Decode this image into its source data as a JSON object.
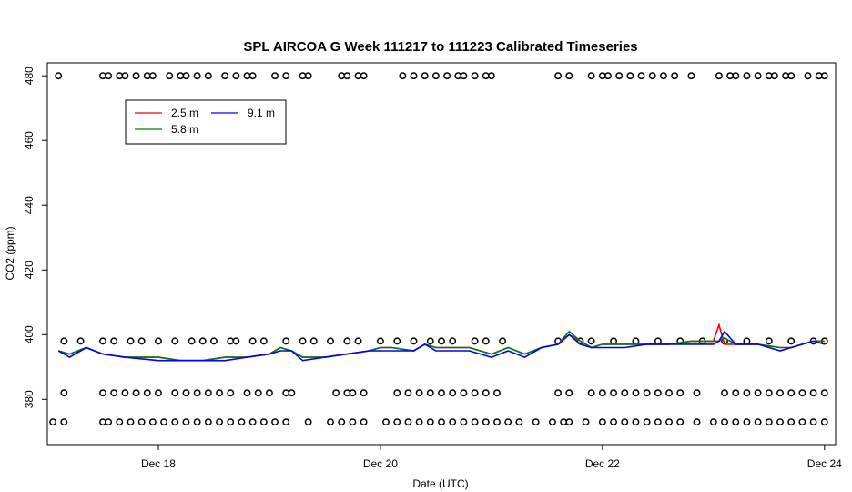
{
  "chart_data": {
    "type": "line",
    "title": "SPL AIRCOA G  Week 111217 to 111223  Calibrated Timeseries",
    "xlabel": "Date (UTC)",
    "ylabel": "CO2 (ppm)",
    "xlim": [
      17,
      24.1
    ],
    "ylim": [
      366,
      484
    ],
    "x_ticks": [
      18,
      20,
      22,
      24
    ],
    "x_tick_labels": [
      "Dec 18",
      "Dec 20",
      "Dec 22",
      "Dec 24"
    ],
    "y_ticks": [
      380,
      400,
      420,
      440,
      460,
      480
    ],
    "legend": {
      "position": "top-left",
      "entries": [
        {
          "label": "2.5 m",
          "color": "#ff0000"
        },
        {
          "label": "5.8 m",
          "color": "#008000"
        },
        {
          "label": "9.1 m",
          "color": "#0000ff"
        }
      ]
    },
    "series": [
      {
        "name": "2.5 m",
        "color": "#ff0000",
        "x": [
          17.1,
          17.2,
          17.35,
          17.5,
          17.7,
          18.0,
          18.2,
          18.4,
          18.6,
          18.8,
          19.0,
          19.1,
          19.2,
          19.3,
          19.5,
          19.7,
          19.9,
          20.0,
          20.1,
          20.3,
          20.4,
          20.5,
          20.6,
          20.8,
          21.0,
          21.15,
          21.3,
          21.45,
          21.6,
          21.7,
          21.8,
          21.9,
          22.0,
          22.2,
          22.4,
          22.6,
          22.8,
          23.0,
          23.05,
          23.1,
          23.2,
          23.4,
          23.6,
          23.7,
          23.8,
          23.9,
          24.0
        ],
        "values": [
          395,
          394,
          396,
          394,
          393,
          393,
          392,
          392,
          393,
          393,
          394,
          396,
          395,
          393,
          393,
          394,
          395,
          396,
          396,
          395,
          397,
          396,
          396,
          396,
          394,
          396,
          394,
          396,
          397,
          400,
          398,
          396,
          397,
          397,
          397,
          397,
          398,
          398,
          403,
          397,
          397,
          397,
          396,
          396,
          397,
          398,
          398
        ]
      },
      {
        "name": "5.8 m",
        "color": "#008000",
        "x": [
          17.1,
          17.2,
          17.35,
          17.5,
          17.7,
          18.0,
          18.2,
          18.4,
          18.6,
          18.8,
          19.0,
          19.1,
          19.2,
          19.3,
          19.5,
          19.7,
          19.9,
          20.0,
          20.1,
          20.3,
          20.4,
          20.5,
          20.6,
          20.8,
          21.0,
          21.15,
          21.3,
          21.45,
          21.6,
          21.7,
          21.8,
          21.9,
          22.0,
          22.2,
          22.4,
          22.6,
          22.8,
          23.0,
          23.05,
          23.1,
          23.2,
          23.4,
          23.6,
          23.7,
          23.8,
          23.9,
          24.0
        ],
        "values": [
          395,
          394,
          396,
          394,
          393,
          393,
          392,
          392,
          393,
          393,
          394,
          396,
          395,
          393,
          393,
          394,
          395,
          396,
          396,
          395,
          397,
          396,
          396,
          396,
          394,
          396,
          394,
          396,
          397,
          401,
          398,
          396,
          397,
          397,
          397,
          397,
          398,
          398,
          398,
          399,
          397,
          397,
          396,
          396,
          397,
          398,
          398
        ]
      },
      {
        "name": "9.1 m",
        "color": "#0000ff",
        "x": [
          17.1,
          17.2,
          17.35,
          17.5,
          17.7,
          18.0,
          18.2,
          18.4,
          18.6,
          18.8,
          19.0,
          19.1,
          19.2,
          19.3,
          19.5,
          19.7,
          19.9,
          20.0,
          20.1,
          20.3,
          20.4,
          20.5,
          20.6,
          20.8,
          21.0,
          21.15,
          21.3,
          21.45,
          21.6,
          21.7,
          21.8,
          21.9,
          22.0,
          22.2,
          22.4,
          22.6,
          22.8,
          23.0,
          23.05,
          23.1,
          23.2,
          23.4,
          23.6,
          23.7,
          23.8,
          23.9,
          24.0
        ],
        "values": [
          395,
          393,
          396,
          394,
          393,
          392,
          392,
          392,
          392,
          393,
          394,
          395,
          395,
          392,
          393,
          394,
          395,
          395,
          395,
          395,
          397,
          395,
          395,
          395,
          393,
          395,
          393,
          396,
          397,
          400,
          397,
          396,
          396,
          396,
          397,
          397,
          397,
          397,
          398,
          401,
          397,
          397,
          395,
          396,
          397,
          398,
          397
        ]
      }
    ],
    "markers": [
      {
        "level": 480,
        "x": [
          17.1,
          17.5,
          17.55,
          17.65,
          17.7,
          17.8,
          17.9,
          17.95,
          18.1,
          18.2,
          18.25,
          18.35,
          18.45,
          18.6,
          18.7,
          18.8,
          18.85,
          19.05,
          19.15,
          19.3,
          19.35,
          19.65,
          19.7,
          19.8,
          19.85,
          20.2,
          20.3,
          20.4,
          20.5,
          20.6,
          20.7,
          20.75,
          20.85,
          20.95,
          21.0,
          21.6,
          21.7,
          21.9,
          22.0,
          22.05,
          22.15,
          22.25,
          22.35,
          22.45,
          22.55,
          22.65,
          22.8,
          23.05,
          23.15,
          23.2,
          23.3,
          23.4,
          23.5,
          23.55,
          23.65,
          23.7,
          23.85,
          23.95,
          24.0
        ]
      },
      {
        "level": 398,
        "x": [
          17.15,
          17.3,
          17.5,
          17.6,
          17.75,
          17.85,
          18.0,
          18.15,
          18.3,
          18.4,
          18.5,
          18.65,
          18.7,
          18.85,
          18.95,
          19.15,
          19.3,
          19.4,
          19.55,
          19.7,
          19.8,
          20.0,
          20.15,
          20.3,
          20.45,
          20.55,
          20.65,
          20.85,
          20.95,
          21.1,
          21.6,
          21.8,
          21.9,
          22.1,
          22.3,
          22.5,
          22.7,
          22.9,
          23.1,
          23.3,
          23.5,
          23.7,
          23.9,
          24.0
        ]
      },
      {
        "level": 382,
        "x": [
          17.15,
          17.5,
          17.6,
          17.7,
          17.8,
          17.9,
          18.0,
          18.15,
          18.25,
          18.35,
          18.45,
          18.55,
          18.65,
          18.8,
          18.9,
          19.0,
          19.15,
          19.2,
          19.6,
          19.7,
          19.75,
          19.85,
          20.15,
          20.25,
          20.35,
          20.45,
          20.55,
          20.65,
          20.75,
          20.85,
          20.95,
          21.05,
          21.6,
          21.7,
          21.9,
          22.0,
          22.1,
          22.2,
          22.3,
          22.4,
          22.5,
          22.6,
          22.7,
          22.85,
          23.1,
          23.2,
          23.3,
          23.4,
          23.5,
          23.6,
          23.7,
          23.8,
          23.9,
          24.0
        ]
      },
      {
        "level": 373,
        "x": [
          17.05,
          17.15,
          17.5,
          17.55,
          17.65,
          17.75,
          17.85,
          17.95,
          18.05,
          18.15,
          18.25,
          18.35,
          18.45,
          18.55,
          18.65,
          18.75,
          18.85,
          18.95,
          19.05,
          19.15,
          19.35,
          19.55,
          19.65,
          19.75,
          19.85,
          20.05,
          20.15,
          20.25,
          20.35,
          20.45,
          20.55,
          20.65,
          20.75,
          20.85,
          20.95,
          21.05,
          21.15,
          21.25,
          21.4,
          21.55,
          21.65,
          21.7,
          21.85,
          22.0,
          22.1,
          22.2,
          22.3,
          22.4,
          22.5,
          22.6,
          22.7,
          22.85,
          23.0,
          23.1,
          23.2,
          23.3,
          23.4,
          23.5,
          23.6,
          23.7,
          23.8,
          23.9,
          24.0
        ]
      }
    ]
  }
}
